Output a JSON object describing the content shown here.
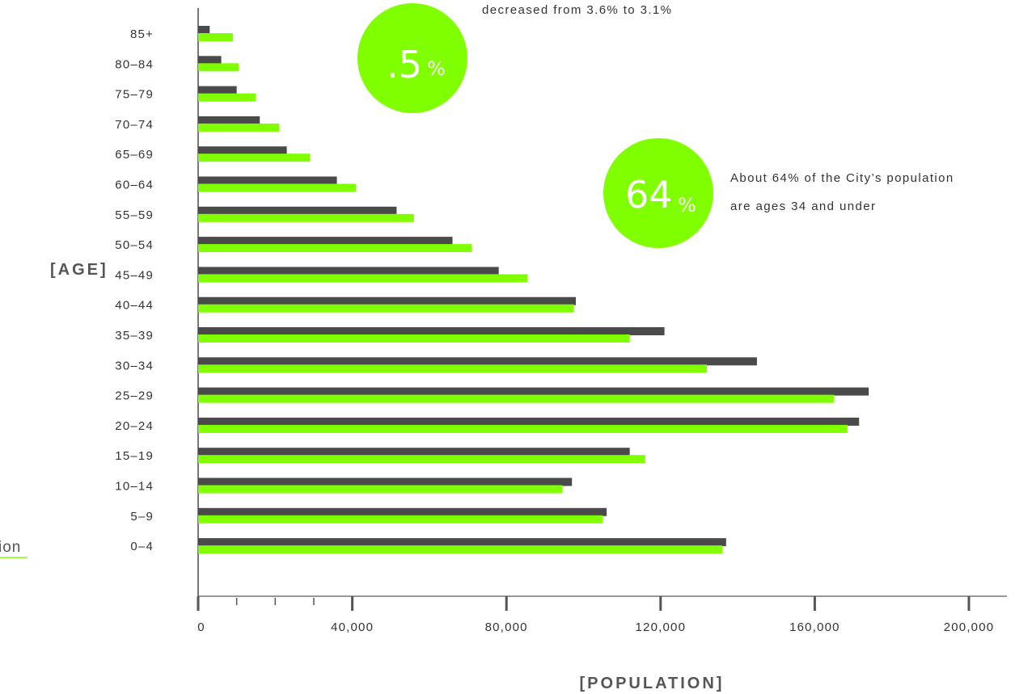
{
  "chart_data": {
    "type": "bar",
    "orientation": "horizontal",
    "ylabel": "[AGE]",
    "xlabel": "[POPULATION]",
    "xlim": [
      0,
      200000
    ],
    "x_ticks": [
      "0",
      "40,000",
      "80,000",
      "120,000",
      "160,000",
      "200,000"
    ],
    "categories": [
      "85+",
      "80–84",
      "75–79",
      "70–74",
      "65–69",
      "60–64",
      "55–59",
      "50–54",
      "45–49",
      "40–44",
      "35–39",
      "30–34",
      "25–29",
      "20–24",
      "15–19",
      "10–14",
      "5–9",
      "0–4"
    ],
    "series": [
      {
        "color": "#4a4a4a",
        "values": [
          3000,
          6000,
          10000,
          16000,
          23000,
          36000,
          51500,
          66000,
          78000,
          98000,
          121000,
          145000,
          174000,
          171500,
          112000,
          97000,
          106000,
          137000
        ]
      },
      {
        "color": "#80ff00",
        "values": [
          9000,
          10500,
          15000,
          21000,
          29000,
          41000,
          56000,
          71000,
          85500,
          97500,
          112000,
          132000,
          165000,
          168500,
          116000,
          94500,
          105000,
          136000
        ]
      }
    ],
    "grid": false
  },
  "callouts": {
    "top_text": "decreased from 3.6% to 3.1%",
    "circle1_value": ".5",
    "circle1_unit": "%",
    "circle2_value": "64",
    "circle2_unit": "%",
    "side_text_line1": "About 64% of the City’s population",
    "side_text_line2": "are ages 34 and under"
  },
  "edge_fragment": "ion",
  "colors": {
    "accent": "#80ff00",
    "dark_bar": "#4a4a4a",
    "axis": "#777777"
  }
}
